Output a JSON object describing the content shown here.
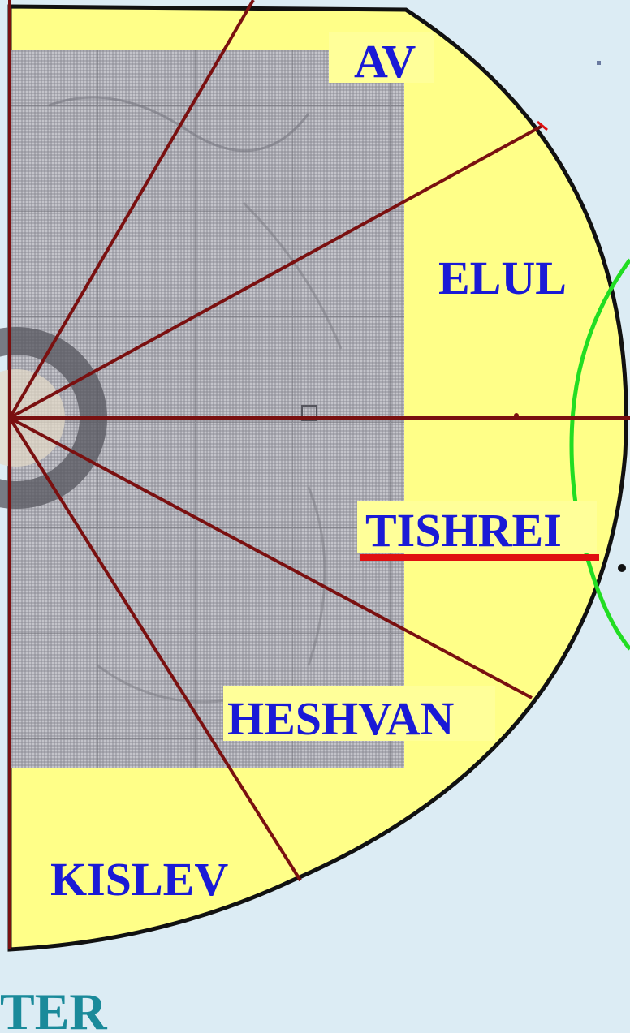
{
  "diagram": {
    "months": [
      {
        "id": "av",
        "label": "AV"
      },
      {
        "id": "elul",
        "label": "ELUL"
      },
      {
        "id": "tishrei",
        "label": "TISHREI",
        "highlighted": true
      },
      {
        "id": "heshvan",
        "label": "HESHVAN"
      },
      {
        "id": "kislev",
        "label": "KISLEV"
      }
    ],
    "footer_fragment": "TER"
  },
  "colors": {
    "background": "#dcecf4",
    "disc_fill": "#ffff88",
    "disc_outline": "#111111",
    "month_lines": "#7a1010",
    "label_text": "#1a1ad6",
    "label_bg": "#ffff99",
    "tishrei_underline": "#e01010",
    "green_arc": "#22dd22",
    "footer_text": "#1a8a9a",
    "map_overlay": "#a8a8b0"
  }
}
